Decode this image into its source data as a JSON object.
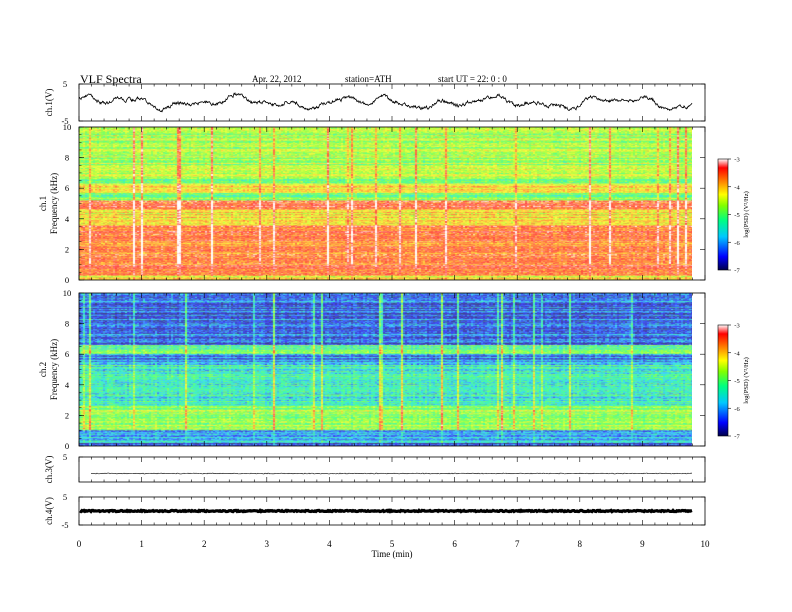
{
  "header": {
    "title": "VLF  Spectra",
    "date": "Apr. 22, 2012",
    "station": "station=ATH",
    "start": "start  UT  =    22: 0  : 0"
  },
  "chart_data": [
    {
      "type": "line",
      "panel": "ch1-waveform",
      "ylabel": "ch.1(V)",
      "yticks": [
        "5",
        "-5"
      ],
      "ylim": [
        -5,
        5
      ],
      "x_unit": "min",
      "xlim": [
        0,
        9.8
      ],
      "series": [
        {
          "values_note": "dense noisy waveform, mostly between about -2 and 3 V"
        }
      ]
    },
    {
      "type": "heatmap",
      "panel": "ch1-spectrogram",
      "ylabel": "Frequency  (kHz)",
      "channel_label": "ch.1",
      "yticks": [
        "0",
        "2",
        "4",
        "6",
        "8",
        "10"
      ],
      "ylim": [
        0,
        10
      ],
      "xlim": [
        0,
        9.8
      ],
      "colorbar": {
        "label": "log(PSD) (V²/Hz)",
        "ticks": [
          "-3",
          "-4",
          "-5",
          "-6",
          "-7"
        ],
        "range": [
          -7,
          -3
        ]
      },
      "bands_kHz": [
        {
          "from": 0,
          "to": 0.3,
          "level": -4.5
        },
        {
          "from": 0.3,
          "to": 1.2,
          "level": -3.6
        },
        {
          "from": 1.2,
          "to": 3.6,
          "level": -3.8
        },
        {
          "from": 3.6,
          "to": 4.6,
          "level": -4.4
        },
        {
          "from": 4.6,
          "to": 5.2,
          "level": -3.7
        },
        {
          "from": 5.2,
          "to": 5.7,
          "level": -5.2
        },
        {
          "from": 5.7,
          "to": 6.3,
          "level": -4.3
        },
        {
          "from": 6.3,
          "to": 6.6,
          "level": -5.4
        },
        {
          "from": 6.6,
          "to": 6.8,
          "level": -4.6
        },
        {
          "from": 6.8,
          "to": 10,
          "level": -4.9
        }
      ]
    },
    {
      "type": "heatmap",
      "panel": "ch2-spectrogram",
      "ylabel": "Frequency  (kHz)",
      "channel_label": "ch.2",
      "yticks": [
        "0",
        "2",
        "4",
        "6",
        "8",
        "10"
      ],
      "ylim": [
        0,
        10
      ],
      "xlim": [
        0,
        9.8
      ],
      "colorbar": {
        "label": "log(PSD) (V²/Hz)",
        "ticks": [
          "-3",
          "-4",
          "-5",
          "-6",
          "-7"
        ],
        "range": [
          -7,
          -3
        ]
      },
      "bands_kHz": [
        {
          "from": 0,
          "to": 0.2,
          "level": -6.8
        },
        {
          "from": 0.2,
          "to": 1.0,
          "level": -6.1
        },
        {
          "from": 1.0,
          "to": 2.6,
          "level": -5.0
        },
        {
          "from": 2.6,
          "to": 5.3,
          "level": -5.7
        },
        {
          "from": 5.3,
          "to": 6.0,
          "level": -6.3
        },
        {
          "from": 6.0,
          "to": 6.6,
          "level": -5.4
        },
        {
          "from": 6.6,
          "to": 7.2,
          "level": -6.6
        },
        {
          "from": 7.2,
          "to": 10,
          "level": -6.4
        }
      ]
    },
    {
      "type": "line",
      "panel": "ch3-waveform",
      "ylabel": "ch.3(V)",
      "yticks": [
        "5"
      ],
      "ylim": [
        -5,
        5
      ],
      "xlim": [
        0,
        9.8
      ],
      "series": [
        {
          "values_note": "nearly flat trace near 0 V"
        }
      ]
    },
    {
      "type": "line",
      "panel": "ch4-waveform",
      "ylabel": "ch.4(V)",
      "yticks": [
        "5",
        "-5"
      ],
      "ylim": [
        -5,
        5
      ],
      "xlim": [
        0,
        9.8
      ],
      "xlabel": "Time  (min)",
      "xticks": [
        "0",
        "1",
        "2",
        "3",
        "4",
        "5",
        "6",
        "7",
        "8",
        "9",
        "10"
      ],
      "series": [
        {
          "values_note": "thick flat trace near 0 V"
        }
      ]
    }
  ],
  "colors": {
    "axis": "#000000",
    "colormap": [
      "#00004a",
      "#0000ff",
      "#00c8ff",
      "#00ff80",
      "#80ff00",
      "#ffff00",
      "#ff8000",
      "#ff0000",
      "#ffffff"
    ]
  }
}
